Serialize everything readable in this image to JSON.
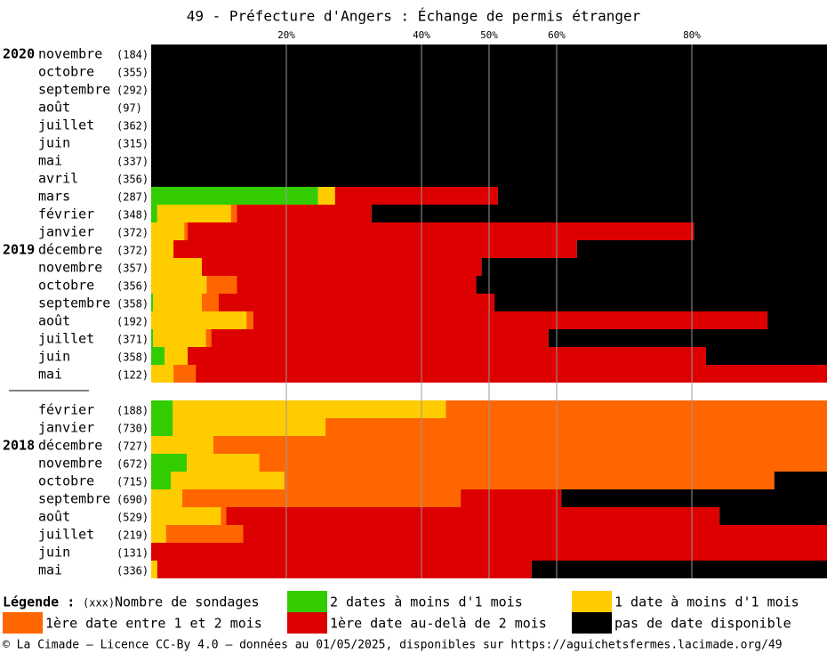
{
  "chart_data": {
    "type": "stacked-barh",
    "title": "49 - Préfecture d'Angers : Échange de permis étranger",
    "years": [
      "2020",
      null,
      null,
      null,
      null,
      null,
      null,
      null,
      null,
      null,
      null,
      "2019",
      null,
      null,
      null,
      null,
      null,
      null,
      null,
      null,
      null,
      null,
      "2018",
      null,
      null,
      null,
      null,
      null,
      null,
      null
    ],
    "categories": [
      "novembre",
      "octobre",
      "septembre",
      "août",
      "juillet",
      "juin",
      "mai",
      "avril",
      "mars",
      "février",
      "janvier",
      "décembre",
      "novembre",
      "octobre",
      "septembre",
      "août",
      "juillet",
      "juin",
      "mai",
      null,
      "février",
      "janvier",
      "décembre",
      "novembre",
      "octobre",
      "septembre",
      "août",
      "juillet",
      "juin",
      "mai"
    ],
    "count_labels": [
      "(184)",
      "(355)",
      "(292)",
      "(97)",
      "(362)",
      "(315)",
      "(337)",
      "(356)",
      "(287)",
      "(348)",
      "(372)",
      "(372)",
      "(357)",
      "(356)",
      "(358)",
      "(192)",
      "(371)",
      "(358)",
      "(122)",
      null,
      "(188)",
      "(730)",
      "(727)",
      "(672)",
      "(715)",
      "(690)",
      "(529)",
      "(219)",
      "(131)",
      "(336)"
    ],
    "series": [
      {
        "name": "2 dates à moins d'1 mois",
        "color": "#33cc00",
        "values": [
          0,
          0,
          0,
          0,
          0,
          0,
          0,
          0,
          24.7,
          0.9,
          0,
          0,
          0,
          0,
          0.3,
          0,
          0.3,
          2.0,
          0,
          null,
          3.2,
          3.2,
          0,
          5.3,
          2.9,
          0,
          0,
          0,
          0,
          0
        ]
      },
      {
        "name": "1 date à moins d'1 mois",
        "color": "#ffcc00",
        "values": [
          0,
          0,
          0,
          0,
          0,
          0,
          0,
          0,
          2.5,
          10.9,
          4.9,
          3.3,
          7.5,
          8.2,
          7.2,
          14.1,
          7.8,
          3.4,
          3.3,
          null,
          40.4,
          22.6,
          9.2,
          10.7,
          16.8,
          4.6,
          10.3,
          2.2,
          0,
          0.9
        ]
      },
      {
        "name": "1ère date entre 1 et 2 mois",
        "color": "#ff6600",
        "values": [
          0,
          0,
          0,
          0,
          0,
          0,
          0,
          0,
          0,
          0.9,
          0.5,
          0,
          0,
          4.5,
          2.5,
          1.0,
          0.8,
          0,
          3.3,
          null,
          56.4,
          74.2,
          90.8,
          84.0,
          72.5,
          41.2,
          0.8,
          11.4,
          0,
          0
        ]
      },
      {
        "name": "1ère date au-delà de 2 mois",
        "color": "#dd0000",
        "values": [
          0,
          0,
          0,
          0,
          0,
          0,
          0,
          0,
          24.1,
          19.9,
          74.9,
          59.7,
          41.4,
          35.4,
          40.8,
          76.1,
          49.9,
          76.7,
          93.4,
          null,
          0,
          0,
          0,
          0,
          0,
          14.9,
          73.0,
          86.4,
          100,
          55.4
        ]
      },
      {
        "name": "pas de date disponible",
        "color": "#000000",
        "values": [
          100,
          100,
          100,
          100,
          100,
          100,
          100,
          100,
          48.7,
          67.4,
          19.7,
          37.0,
          51.1,
          51.9,
          49.2,
          8.8,
          41.2,
          17.9,
          0,
          null,
          0,
          0,
          0,
          0,
          7.8,
          39.3,
          15.9,
          0,
          0,
          43.7
        ]
      }
    ],
    "xlim": [
      0,
      100
    ],
    "xticks": [
      {
        "value": 20,
        "label": "20%"
      },
      {
        "value": 40,
        "label": "40%"
      },
      {
        "value": 50,
        "label": "50%"
      },
      {
        "value": 60,
        "label": "60%"
      },
      {
        "value": 80,
        "label": "80%"
      }
    ],
    "grid": true,
    "legend_title": "Légende :",
    "legend_count_marker": "(xxx)",
    "legend_count_text": "Nombre de sondages",
    "footer": "© La Cimade – Licence CC-By 4.0 – données au 01/05/2025, disponibles sur https://aguichetsfermes.lacimade.org/49"
  }
}
